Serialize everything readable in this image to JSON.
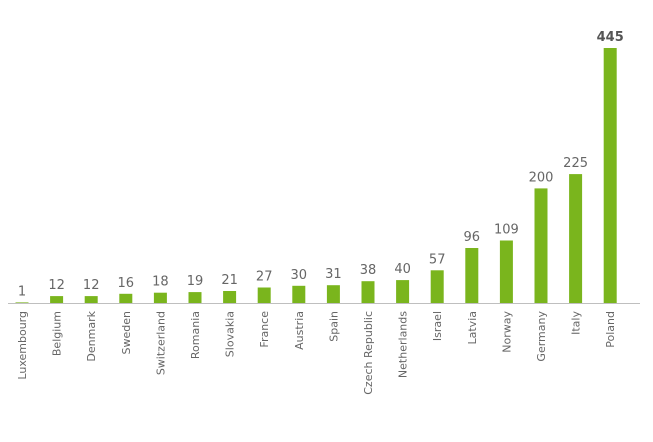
{
  "chart_data": {
    "type": "bar",
    "title": "",
    "xlabel": "",
    "ylabel": "",
    "categories": [
      "Luxembourg",
      "Belgium",
      "Denmark",
      "Sweden",
      "Switzerland",
      "Romania",
      "Slovakia",
      "France",
      "Austria",
      "Spain",
      "Czech Republic",
      "Netherlands",
      "Israel",
      "Latvia",
      "Norway",
      "Germany",
      "Italy",
      "Poland"
    ],
    "values": [
      1,
      12,
      12,
      16,
      18,
      19,
      21,
      27,
      30,
      31,
      38,
      40,
      57,
      96,
      109,
      200,
      225,
      445
    ],
    "value_labels": [
      "1",
      "12",
      "12",
      "16",
      "18",
      "19",
      "21",
      "27",
      "30",
      "31",
      "38",
      "40",
      "57",
      "96",
      "109",
      "200",
      "225",
      "445"
    ],
    "highlight_label": "445",
    "ylim": [
      0,
      445
    ],
    "grid": false,
    "legend": "none",
    "bar_color": "#7ab51d",
    "axis_color": "#bfbfbf"
  }
}
